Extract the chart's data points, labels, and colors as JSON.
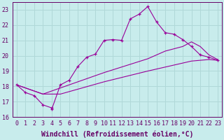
{
  "xlabel": "Windchill (Refroidissement éolien,°C)",
  "bg_color": "#c8ecec",
  "line_color": "#990099",
  "grid_color": "#b0d8d8",
  "xlim": [
    -0.5,
    23.5
  ],
  "ylim": [
    16,
    23.5
  ],
  "xticks": [
    0,
    1,
    2,
    3,
    4,
    5,
    6,
    7,
    8,
    9,
    10,
    11,
    12,
    13,
    14,
    15,
    16,
    17,
    18,
    19,
    20,
    21,
    22,
    23
  ],
  "yticks": [
    16,
    17,
    18,
    19,
    20,
    21,
    22,
    23
  ],
  "lines": [
    {
      "x": [
        0,
        1,
        2,
        3,
        4,
        4,
        5,
        6,
        7,
        8,
        9,
        10,
        11,
        12,
        13,
        14,
        15,
        16,
        17,
        18,
        19,
        20,
        21,
        22,
        23
      ],
      "y": [
        18.1,
        17.6,
        17.4,
        16.8,
        16.6,
        16.5,
        18.1,
        18.4,
        19.3,
        19.9,
        20.1,
        21.0,
        21.05,
        21.0,
        22.4,
        22.7,
        23.2,
        22.2,
        21.5,
        21.4,
        21.05,
        20.6,
        20.05,
        19.9,
        19.7
      ],
      "marker": "+"
    },
    {
      "x": [
        0,
        3,
        5,
        10,
        15,
        17,
        19,
        20,
        21,
        22,
        23
      ],
      "y": [
        18.1,
        17.5,
        17.9,
        18.9,
        19.8,
        20.3,
        20.6,
        20.9,
        20.6,
        20.05,
        19.75
      ],
      "marker": null
    },
    {
      "x": [
        0,
        3,
        5,
        10,
        15,
        20,
        22,
        23
      ],
      "y": [
        18.1,
        17.5,
        17.5,
        18.3,
        19.0,
        19.65,
        19.75,
        19.7
      ],
      "marker": null
    }
  ],
  "font_color": "#660066",
  "tick_labelsize": 6,
  "xlabel_fontsize": 7
}
